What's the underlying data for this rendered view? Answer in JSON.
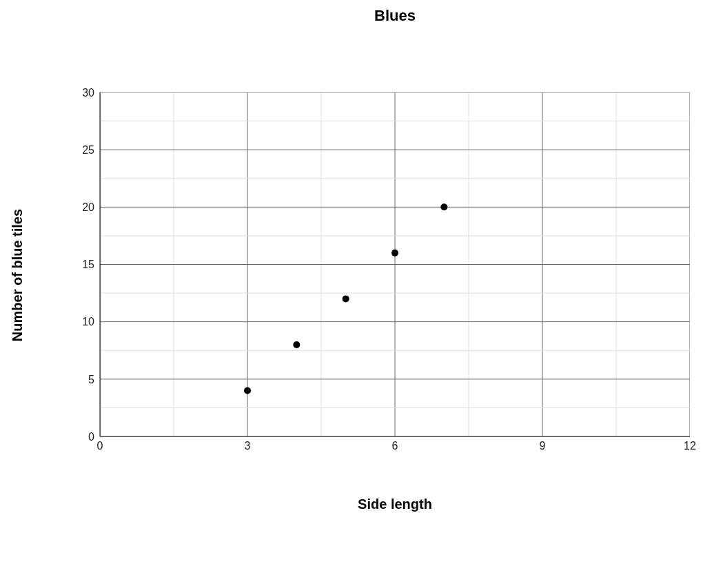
{
  "chart_data": {
    "type": "scatter",
    "title": "Blues",
    "xlabel": "Side length",
    "ylabel": "Number of blue tiles",
    "x": [
      3,
      4,
      5,
      6,
      7
    ],
    "series": [
      {
        "color": "#000000",
        "values": [
          4,
          8,
          12,
          16,
          20
        ]
      }
    ],
    "xlim": [
      0,
      12
    ],
    "xticks": [
      0,
      {
        "value": 1.5,
        "label": null
      },
      3,
      {
        "value": 4.5,
        "label": null
      },
      6,
      {
        "value": 7.5,
        "label": null
      },
      9,
      {
        "value": 10.5,
        "label": null
      },
      12
    ],
    "ylim": [
      0,
      30
    ],
    "yticks": [
      0,
      {
        "value": 2.5,
        "label": null
      },
      5,
      {
        "value": 7.5,
        "label": null
      },
      10,
      {
        "value": 12.5,
        "label": null
      },
      15,
      {
        "value": 17.5,
        "label": null
      },
      20,
      {
        "value": 22.5,
        "label": null
      },
      25,
      {
        "value": 27.5,
        "label": null
      },
      30
    ],
    "grid": true,
    "marker": "circle"
  }
}
